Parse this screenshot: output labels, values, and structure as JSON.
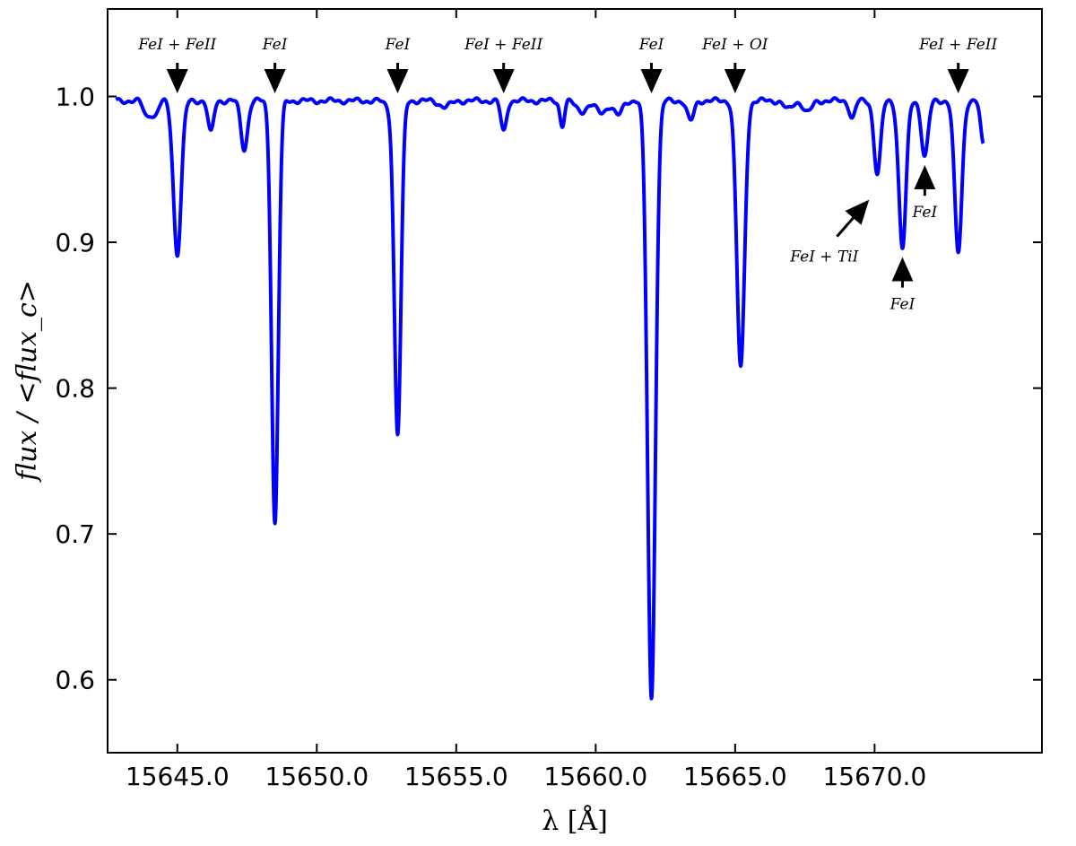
{
  "chart_data": {
    "type": "line",
    "xlabel": "λ [Å]",
    "ylabel": "flux / <flux_c>",
    "xlim": [
      15642.5,
      15676.0
    ],
    "ylim": [
      0.55,
      1.06
    ],
    "xticks": [
      15645.0,
      15650.0,
      15655.0,
      15660.0,
      15665.0,
      15670.0
    ],
    "xtick_labels": [
      "15645.0",
      "15650.0",
      "15655.0",
      "15660.0",
      "15665.0",
      "15670.0"
    ],
    "yticks": [
      0.6,
      0.7,
      0.8,
      0.9,
      1.0
    ],
    "ytick_labels": [
      "0.6",
      "0.7",
      "0.8",
      "0.9",
      "1.0"
    ],
    "grid": false,
    "line_color": "#0000ff",
    "wavelength_range": [
      15642.8,
      15673.9
    ],
    "continuum_level": 0.997,
    "absorption_lines": [
      {
        "center": 15643.9,
        "depth": 0.01,
        "width": 0.12
      },
      {
        "center": 15644.2,
        "depth": 0.01,
        "width": 0.12
      },
      {
        "center": 15645.0,
        "depth": 0.105,
        "width": 0.14
      },
      {
        "center": 15646.2,
        "depth": 0.022,
        "width": 0.1
      },
      {
        "center": 15647.4,
        "depth": 0.033,
        "width": 0.12
      },
      {
        "center": 15648.5,
        "depth": 0.29,
        "width": 0.12
      },
      {
        "center": 15652.6,
        "depth": 0.004,
        "width": 0.15
      },
      {
        "center": 15652.9,
        "depth": 0.228,
        "width": 0.12
      },
      {
        "center": 15654.6,
        "depth": 0.004,
        "width": 0.2
      },
      {
        "center": 15656.7,
        "depth": 0.021,
        "width": 0.1
      },
      {
        "center": 15658.8,
        "depth": 0.017,
        "width": 0.08
      },
      {
        "center": 15659.5,
        "depth": 0.007,
        "width": 0.2
      },
      {
        "center": 15660.2,
        "depth": 0.008,
        "width": 0.2
      },
      {
        "center": 15660.8,
        "depth": 0.01,
        "width": 0.15
      },
      {
        "center": 15662.0,
        "depth": 0.41,
        "width": 0.14
      },
      {
        "center": 15663.4,
        "depth": 0.014,
        "width": 0.12
      },
      {
        "center": 15665.2,
        "depth": 0.183,
        "width": 0.14
      },
      {
        "center": 15666.9,
        "depth": 0.006,
        "width": 0.15
      },
      {
        "center": 15667.6,
        "depth": 0.008,
        "width": 0.15
      },
      {
        "center": 15669.2,
        "depth": 0.012,
        "width": 0.1
      },
      {
        "center": 15670.1,
        "depth": 0.05,
        "width": 0.12
      },
      {
        "center": 15671.0,
        "depth": 0.101,
        "width": 0.13
      },
      {
        "center": 15671.8,
        "depth": 0.038,
        "width": 0.12
      },
      {
        "center": 15673.0,
        "depth": 0.104,
        "width": 0.13
      },
      {
        "center": 15673.9,
        "depth": 0.03,
        "width": 0.1
      }
    ],
    "annotations": [
      {
        "text": "FeI + FeII",
        "x": 15645.0,
        "arrow_direction": "down"
      },
      {
        "text": "FeI",
        "x": 15648.5,
        "arrow_direction": "down"
      },
      {
        "text": "FeI",
        "x": 15652.9,
        "arrow_direction": "down"
      },
      {
        "text": "FeI + FeII",
        "x": 15656.7,
        "arrow_direction": "down"
      },
      {
        "text": "FeI",
        "x": 15662.0,
        "arrow_direction": "down"
      },
      {
        "text": "FeI + OI",
        "x": 15665.0,
        "arrow_direction": "down"
      },
      {
        "text": "FeI + FeII",
        "x": 15673.0,
        "arrow_direction": "down"
      },
      {
        "text": "FeI + TiI",
        "x": 15670.0,
        "arrow_direction": "up-right"
      },
      {
        "text": "FeI",
        "x": 15671.0,
        "arrow_direction": "up"
      },
      {
        "text": "FeI",
        "x": 15671.8,
        "arrow_direction": "up"
      }
    ]
  }
}
